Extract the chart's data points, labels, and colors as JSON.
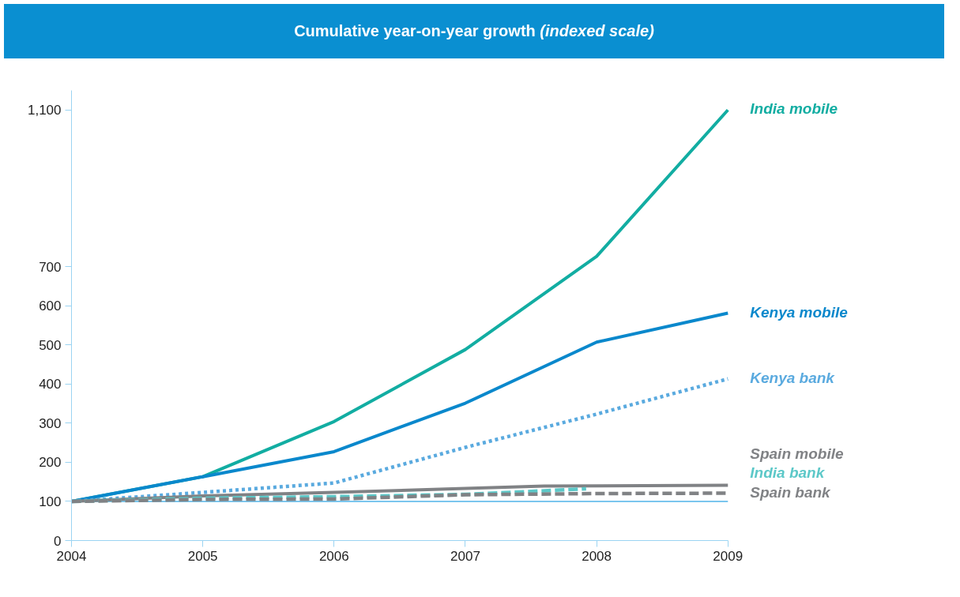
{
  "chart_data": {
    "type": "line",
    "title": "Cumulative year-on-year growth",
    "subtitle": "(indexed scale)",
    "xlim": [
      2004,
      2009
    ],
    "xticks": [
      2004,
      2005,
      2006,
      2007,
      2008,
      2009
    ],
    "ylim": [
      0,
      1150
    ],
    "yticks": [
      0,
      100,
      200,
      300,
      400,
      500,
      600,
      700,
      {
        "value": 1100,
        "label": "1,100"
      }
    ],
    "grid": false,
    "ref_lines": [
      {
        "axis": "y",
        "value": 100,
        "color": "#4fb3e8"
      }
    ],
    "series": [
      {
        "name": "India mobile",
        "color": "#12ada2",
        "line_style": "solid",
        "x": [
          2004,
          2005,
          2006,
          2007,
          2008,
          2009
        ],
        "values": [
          100,
          163,
          304,
          488,
          726,
          1100
        ]
      },
      {
        "name": "Kenya mobile",
        "color": "#0a88cc",
        "line_style": "solid",
        "x": [
          2004,
          2005,
          2006,
          2007,
          2008,
          2009
        ],
        "values": [
          100,
          163,
          227,
          351,
          507,
          581
        ]
      },
      {
        "name": "Kenya bank",
        "color": "#5aaadf",
        "line_style": "dotted",
        "x": [
          2004,
          2005,
          2006,
          2007,
          2008,
          2009
        ],
        "values": [
          100,
          123,
          147,
          238,
          323,
          413
        ]
      },
      {
        "name": "Spain mobile",
        "color": "#808285",
        "line_style": "solid",
        "x": [
          2004,
          2005,
          2006,
          2007,
          2007.6,
          2009
        ],
        "values": [
          100,
          114,
          123,
          133,
          139,
          141
        ]
      },
      {
        "name": "India bank",
        "color": "#5cc8c8",
        "line_style": "dashed",
        "x": [
          2004,
          2005,
          2006,
          2007,
          2007.92
        ],
        "values": [
          100,
          108,
          112,
          118,
          132
        ]
      },
      {
        "name": "Spain bank",
        "color": "#808285",
        "line_style": "dashed",
        "x": [
          2004,
          2005,
          2006,
          2007,
          2008,
          2009
        ],
        "values": [
          100,
          105,
          106,
          117,
          120,
          121
        ]
      }
    ]
  }
}
